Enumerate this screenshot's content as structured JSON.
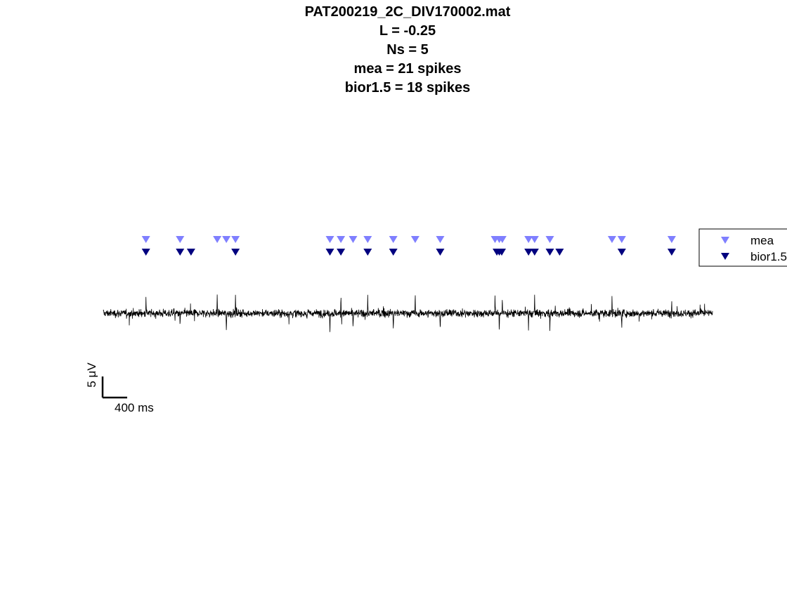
{
  "chart_data": {
    "type": "line",
    "title_lines": [
      "PAT200219_2C_DIV170002.mat",
      "L = -0.25",
      "Ns = 5",
      "mea = 21 spikes",
      "bior1.5 = 18 spikes"
    ],
    "xlabel": "",
    "ylabel": "",
    "axes_visible": false,
    "grid": false,
    "xlim_ms": [
      0,
      10000
    ],
    "trace": {
      "name": "",
      "color": "#000000",
      "noise_amplitude_uV": 1.4
    },
    "series": [
      {
        "name": "mea",
        "marker": "triangle-down",
        "color": "#7f7fff",
        "spike_times_ms": [
          700,
          1260,
          1870,
          2020,
          2170,
          3720,
          3900,
          4100,
          4340,
          4760,
          5120,
          5530,
          6430,
          6500,
          6550,
          6980,
          7080,
          7330,
          8350,
          8510,
          9330
        ]
      },
      {
        "name": "bior1.5",
        "marker": "triangle-down",
        "color": "#00007f",
        "spike_times_ms": [
          700,
          1260,
          1440,
          2170,
          3720,
          3900,
          4340,
          4760,
          5530,
          6460,
          6540,
          6980,
          7080,
          7330,
          7490,
          8510,
          9330,
          6500
        ]
      }
    ],
    "legend": {
      "position": "right",
      "entries": [
        "mea",
        "bior1.5"
      ]
    },
    "scale_bar": {
      "y_label": "5 μV",
      "x_label": "400 ms",
      "y_value_uV": 5,
      "x_value_ms": 400
    }
  }
}
